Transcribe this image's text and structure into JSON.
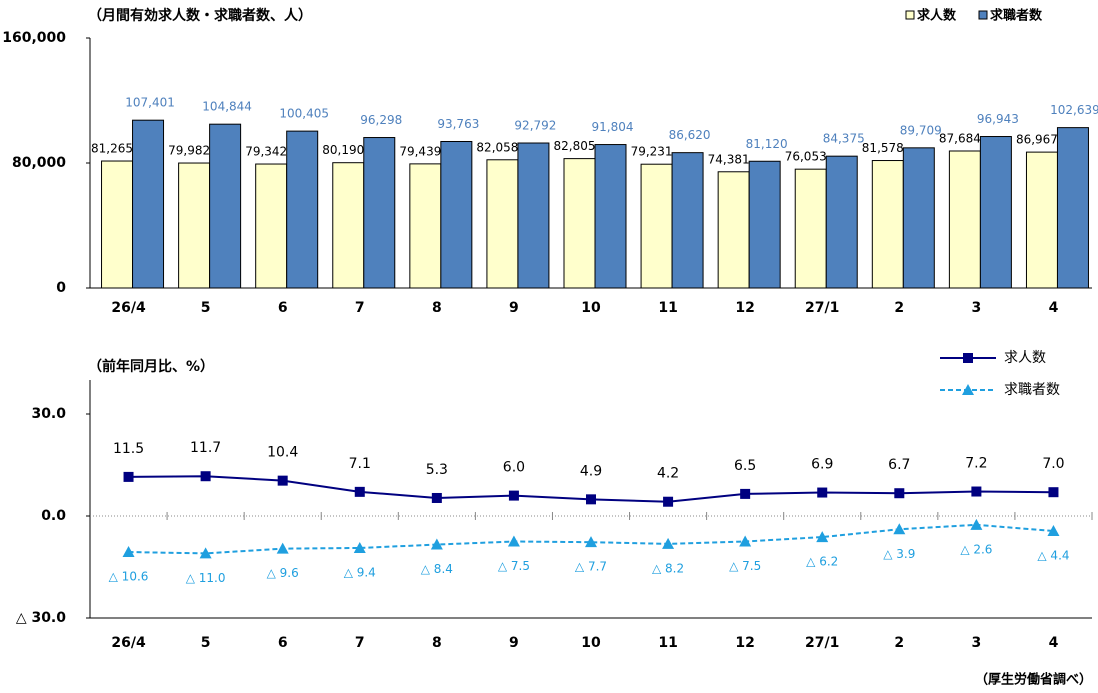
{
  "chart_data": [
    {
      "type": "bar",
      "title": "（月間有効求人数・求職者数、人）",
      "categories": [
        "26/4",
        "5",
        "6",
        "7",
        "8",
        "9",
        "10",
        "11",
        "12",
        "27/1",
        "2",
        "3",
        "4"
      ],
      "series": [
        {
          "name": "求人数",
          "color": "#ffffcc",
          "values": [
            81265,
            79982,
            79342,
            80190,
            79439,
            82058,
            82805,
            79231,
            74381,
            76053,
            81578,
            87684,
            86967
          ],
          "value_labels": [
            "81,265",
            "79,982",
            "79,342",
            "80,190",
            "79,439",
            "82,058",
            "82,805",
            "79,231",
            "74,381",
            "76,053",
            "81,578",
            "87,684",
            "86,967"
          ]
        },
        {
          "name": "求職者数",
          "color": "#4f81bd",
          "values": [
            107401,
            104844,
            100405,
            96298,
            93763,
            92792,
            91804,
            86620,
            81120,
            84375,
            89709,
            96943,
            102639
          ],
          "value_labels": [
            "107,401",
            "104,844",
            "100,405",
            "96,298",
            "93,763",
            "92,792",
            "91,804",
            "86,620",
            "81,120",
            "84,375",
            "89,709",
            "96,943",
            "102,639"
          ]
        }
      ],
      "ylim": [
        0,
        160000
      ],
      "yticks": [
        0,
        {
          "value": 80000,
          "label": "80,000"
        },
        {
          "value": 160000,
          "label": "160,000"
        }
      ]
    },
    {
      "type": "line",
      "title": "（前年同月比、%）",
      "categories": [
        "26/4",
        "5",
        "6",
        "7",
        "8",
        "9",
        "10",
        "11",
        "12",
        "27/1",
        "2",
        "3",
        "4"
      ],
      "series": [
        {
          "name": "求人数",
          "color": "#000080",
          "values": [
            11.5,
            11.7,
            10.4,
            7.1,
            5.3,
            6.0,
            4.9,
            4.2,
            6.5,
            6.9,
            6.7,
            7.2,
            7.0
          ],
          "value_labels": [
            "11.5",
            "11.7",
            "10.4",
            "7.1",
            "5.3",
            "6.0",
            "4.9",
            "4.2",
            "6.5",
            "6.9",
            "6.7",
            "7.2",
            "7.0"
          ]
        },
        {
          "name": "求職者数",
          "color": "#1f9fdf",
          "dashed": true,
          "values": [
            -10.6,
            -11.0,
            -9.6,
            -9.4,
            -8.4,
            -7.5,
            -7.7,
            -8.2,
            -7.5,
            -6.2,
            -3.9,
            -2.6,
            -4.4
          ],
          "value_labels": [
            "△ 10.6",
            "△ 11.0",
            "△ 9.6",
            "△ 9.4",
            "△ 8.4",
            "△ 7.5",
            "△ 7.7",
            "△ 8.2",
            "△ 7.5",
            "△ 6.2",
            "△ 3.9",
            "△ 2.6",
            "△ 4.4"
          ]
        }
      ],
      "ylim": [
        -30,
        40
      ],
      "yticks": [
        {
          "value": -30,
          "label": "△ 30.0"
        },
        {
          "value": 0,
          "label": "0.0"
        },
        {
          "value": 30,
          "label": "30.0"
        }
      ],
      "source": "（厚生労働省調べ）"
    }
  ]
}
